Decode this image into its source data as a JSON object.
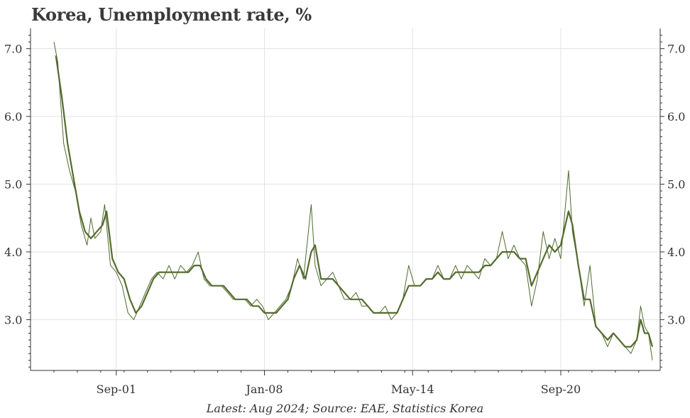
{
  "chart_data": {
    "type": "line",
    "title": "Korea, Unemployment rate, %",
    "footer": "Latest: Aug 2024; Source: EAE, Statistics Korea",
    "ylim": [
      2.25,
      7.3
    ],
    "yticks": [
      3.0,
      4.0,
      5.0,
      6.0,
      7.0
    ],
    "ytick_labels": [
      "3.0",
      "4.0",
      "5.0",
      "6.0",
      "7.0"
    ],
    "xlim": [
      "1998-01",
      "2024-12"
    ],
    "xticks": [
      "2001-09",
      "2008-01",
      "2014-05",
      "2020-09"
    ],
    "xtick_labels": [
      "Sep-01",
      "Jan-08",
      "May-14",
      "Sep-20"
    ],
    "grid": true,
    "colors": {
      "thin": "#4d6b2c",
      "thick": "#556b2f"
    },
    "series": [
      {
        "style": "thin",
        "points": [
          [
            "1999-01",
            7.1
          ],
          [
            "1999-03",
            6.8
          ],
          [
            "1999-06",
            5.6
          ],
          [
            "1999-09",
            5.2
          ],
          [
            "1999-12",
            4.9
          ],
          [
            "2000-03",
            4.4
          ],
          [
            "2000-06",
            4.1
          ],
          [
            "2000-08",
            4.5
          ],
          [
            "2000-10",
            4.2
          ],
          [
            "2001-01",
            4.3
          ],
          [
            "2001-03",
            4.7
          ],
          [
            "2001-06",
            3.8
          ],
          [
            "2001-09",
            3.7
          ],
          [
            "2001-12",
            3.5
          ],
          [
            "2002-03",
            3.1
          ],
          [
            "2002-06",
            3.0
          ],
          [
            "2002-09",
            3.2
          ],
          [
            "2002-12",
            3.4
          ],
          [
            "2003-03",
            3.6
          ],
          [
            "2003-06",
            3.7
          ],
          [
            "2003-09",
            3.6
          ],
          [
            "2003-12",
            3.8
          ],
          [
            "2004-03",
            3.6
          ],
          [
            "2004-06",
            3.8
          ],
          [
            "2004-09",
            3.7
          ],
          [
            "2004-12",
            3.8
          ],
          [
            "2005-03",
            4.0
          ],
          [
            "2005-06",
            3.6
          ],
          [
            "2005-09",
            3.5
          ],
          [
            "2005-12",
            3.5
          ],
          [
            "2006-03",
            3.5
          ],
          [
            "2006-06",
            3.4
          ],
          [
            "2006-09",
            3.3
          ],
          [
            "2006-12",
            3.3
          ],
          [
            "2007-03",
            3.3
          ],
          [
            "2007-06",
            3.2
          ],
          [
            "2007-09",
            3.3
          ],
          [
            "2007-12",
            3.2
          ],
          [
            "2008-03",
            3.0
          ],
          [
            "2008-06",
            3.1
          ],
          [
            "2008-09",
            3.2
          ],
          [
            "2008-12",
            3.3
          ],
          [
            "2009-03",
            3.5
          ],
          [
            "2009-06",
            3.9
          ],
          [
            "2009-09",
            3.6
          ],
          [
            "2010-01",
            4.7
          ],
          [
            "2010-03",
            3.8
          ],
          [
            "2010-06",
            3.5
          ],
          [
            "2010-09",
            3.6
          ],
          [
            "2010-12",
            3.7
          ],
          [
            "2011-03",
            3.5
          ],
          [
            "2011-06",
            3.3
          ],
          [
            "2011-09",
            3.3
          ],
          [
            "2011-12",
            3.4
          ],
          [
            "2012-03",
            3.2
          ],
          [
            "2012-06",
            3.2
          ],
          [
            "2012-09",
            3.1
          ],
          [
            "2012-12",
            3.1
          ],
          [
            "2013-03",
            3.2
          ],
          [
            "2013-06",
            3.0
          ],
          [
            "2013-09",
            3.1
          ],
          [
            "2013-12",
            3.3
          ],
          [
            "2014-03",
            3.8
          ],
          [
            "2014-06",
            3.5
          ],
          [
            "2014-09",
            3.5
          ],
          [
            "2014-12",
            3.6
          ],
          [
            "2015-03",
            3.6
          ],
          [
            "2015-06",
            3.8
          ],
          [
            "2015-09",
            3.6
          ],
          [
            "2015-12",
            3.6
          ],
          [
            "2016-03",
            3.8
          ],
          [
            "2016-06",
            3.6
          ],
          [
            "2016-09",
            3.8
          ],
          [
            "2016-12",
            3.7
          ],
          [
            "2017-03",
            3.6
          ],
          [
            "2017-06",
            3.9
          ],
          [
            "2017-09",
            3.8
          ],
          [
            "2017-12",
            3.9
          ],
          [
            "2018-03",
            4.3
          ],
          [
            "2018-06",
            3.9
          ],
          [
            "2018-09",
            4.1
          ],
          [
            "2018-12",
            3.9
          ],
          [
            "2019-03",
            3.8
          ],
          [
            "2019-06",
            3.2
          ],
          [
            "2019-09",
            3.6
          ],
          [
            "2019-12",
            4.3
          ],
          [
            "2020-03",
            3.9
          ],
          [
            "2020-06",
            4.2
          ],
          [
            "2020-09",
            3.9
          ],
          [
            "2021-01",
            5.2
          ],
          [
            "2021-03",
            4.3
          ],
          [
            "2021-06",
            3.8
          ],
          [
            "2021-09",
            3.2
          ],
          [
            "2021-12",
            3.8
          ],
          [
            "2022-03",
            2.9
          ],
          [
            "2022-06",
            2.8
          ],
          [
            "2022-09",
            2.6
          ],
          [
            "2022-12",
            2.8
          ],
          [
            "2023-03",
            2.7
          ],
          [
            "2023-06",
            2.6
          ],
          [
            "2023-09",
            2.5
          ],
          [
            "2023-12",
            2.7
          ],
          [
            "2024-02",
            3.2
          ],
          [
            "2024-04",
            2.9
          ],
          [
            "2024-06",
            2.8
          ],
          [
            "2024-08",
            2.4
          ]
        ]
      },
      {
        "style": "thick",
        "points": [
          [
            "1999-02",
            6.9
          ],
          [
            "1999-05",
            6.3
          ],
          [
            "1999-08",
            5.6
          ],
          [
            "1999-11",
            5.1
          ],
          [
            "2000-02",
            4.6
          ],
          [
            "2000-05",
            4.3
          ],
          [
            "2000-08",
            4.2
          ],
          [
            "2000-11",
            4.3
          ],
          [
            "2001-02",
            4.4
          ],
          [
            "2001-04",
            4.6
          ],
          [
            "2001-07",
            3.9
          ],
          [
            "2001-10",
            3.7
          ],
          [
            "2002-01",
            3.6
          ],
          [
            "2002-04",
            3.3
          ],
          [
            "2002-07",
            3.1
          ],
          [
            "2002-10",
            3.2
          ],
          [
            "2003-01",
            3.4
          ],
          [
            "2003-04",
            3.6
          ],
          [
            "2003-07",
            3.7
          ],
          [
            "2003-10",
            3.7
          ],
          [
            "2004-01",
            3.7
          ],
          [
            "2004-04",
            3.7
          ],
          [
            "2004-07",
            3.7
          ],
          [
            "2004-10",
            3.7
          ],
          [
            "2005-01",
            3.8
          ],
          [
            "2005-04",
            3.8
          ],
          [
            "2005-07",
            3.6
          ],
          [
            "2005-10",
            3.5
          ],
          [
            "2006-01",
            3.5
          ],
          [
            "2006-04",
            3.5
          ],
          [
            "2006-07",
            3.4
          ],
          [
            "2006-10",
            3.3
          ],
          [
            "2007-01",
            3.3
          ],
          [
            "2007-04",
            3.3
          ],
          [
            "2007-07",
            3.2
          ],
          [
            "2007-10",
            3.2
          ],
          [
            "2008-01",
            3.1
          ],
          [
            "2008-04",
            3.1
          ],
          [
            "2008-07",
            3.1
          ],
          [
            "2008-10",
            3.2
          ],
          [
            "2009-01",
            3.3
          ],
          [
            "2009-04",
            3.6
          ],
          [
            "2009-07",
            3.8
          ],
          [
            "2009-10",
            3.6
          ],
          [
            "2010-01",
            4.0
          ],
          [
            "2010-03",
            4.1
          ],
          [
            "2010-06",
            3.6
          ],
          [
            "2010-09",
            3.6
          ],
          [
            "2010-12",
            3.6
          ],
          [
            "2011-03",
            3.5
          ],
          [
            "2011-06",
            3.4
          ],
          [
            "2011-09",
            3.3
          ],
          [
            "2011-12",
            3.3
          ],
          [
            "2012-03",
            3.3
          ],
          [
            "2012-06",
            3.2
          ],
          [
            "2012-09",
            3.1
          ],
          [
            "2012-12",
            3.1
          ],
          [
            "2013-03",
            3.1
          ],
          [
            "2013-06",
            3.1
          ],
          [
            "2013-09",
            3.1
          ],
          [
            "2013-12",
            3.3
          ],
          [
            "2014-03",
            3.5
          ],
          [
            "2014-06",
            3.5
          ],
          [
            "2014-09",
            3.5
          ],
          [
            "2014-12",
            3.6
          ],
          [
            "2015-03",
            3.6
          ],
          [
            "2015-06",
            3.7
          ],
          [
            "2015-09",
            3.6
          ],
          [
            "2015-12",
            3.6
          ],
          [
            "2016-03",
            3.7
          ],
          [
            "2016-06",
            3.7
          ],
          [
            "2016-09",
            3.7
          ],
          [
            "2016-12",
            3.7
          ],
          [
            "2017-03",
            3.7
          ],
          [
            "2017-06",
            3.8
          ],
          [
            "2017-09",
            3.8
          ],
          [
            "2017-12",
            3.9
          ],
          [
            "2018-03",
            4.0
          ],
          [
            "2018-06",
            4.0
          ],
          [
            "2018-09",
            4.0
          ],
          [
            "2018-12",
            3.9
          ],
          [
            "2019-03",
            3.9
          ],
          [
            "2019-06",
            3.5
          ],
          [
            "2019-09",
            3.7
          ],
          [
            "2019-12",
            3.9
          ],
          [
            "2020-03",
            4.1
          ],
          [
            "2020-06",
            4.0
          ],
          [
            "2020-09",
            4.1
          ],
          [
            "2021-01",
            4.6
          ],
          [
            "2021-03",
            4.4
          ],
          [
            "2021-06",
            3.8
          ],
          [
            "2021-09",
            3.3
          ],
          [
            "2021-12",
            3.3
          ],
          [
            "2022-03",
            2.9
          ],
          [
            "2022-06",
            2.8
          ],
          [
            "2022-09",
            2.7
          ],
          [
            "2022-12",
            2.8
          ],
          [
            "2023-03",
            2.7
          ],
          [
            "2023-06",
            2.6
          ],
          [
            "2023-09",
            2.6
          ],
          [
            "2023-12",
            2.7
          ],
          [
            "2024-02",
            3.0
          ],
          [
            "2024-04",
            2.8
          ],
          [
            "2024-06",
            2.8
          ],
          [
            "2024-08",
            2.6
          ]
        ]
      }
    ]
  }
}
